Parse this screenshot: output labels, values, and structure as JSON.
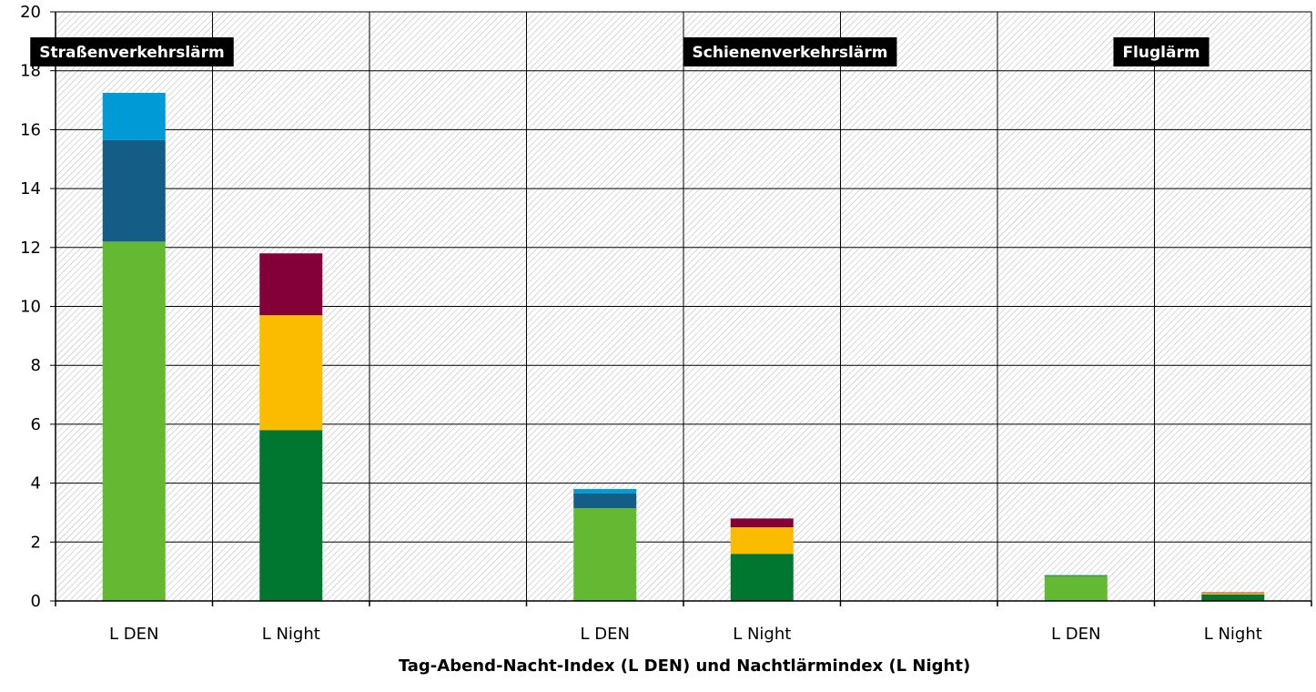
{
  "chart_data": {
    "type": "bar",
    "stacked": true,
    "xlabel": "Tag-Abend-Nacht-Index (L DEN) und Nachtlärmindex (L Night)",
    "ylabel": "",
    "ylim": [
      0,
      20
    ],
    "yticks": [
      0,
      2,
      4,
      6,
      8,
      10,
      12,
      14,
      16,
      18,
      20
    ],
    "grid": true,
    "groups": [
      {
        "label": "Straßenverkehrslärm",
        "bars": [
          {
            "category": "L DEN",
            "segments": [
              {
                "value": 12.2,
                "color": "#63b932"
              },
              {
                "value": 3.45,
                "color": "#135d86"
              },
              {
                "value": 1.6,
                "color": "#009ad6"
              }
            ]
          },
          {
            "category": "L Night",
            "segments": [
              {
                "value": 5.8,
                "color": "#007730"
              },
              {
                "value": 3.9,
                "color": "#fbbc00"
              },
              {
                "value": 2.1,
                "color": "#830039"
              }
            ]
          }
        ]
      },
      {
        "label": "Schienenverkehrslärm",
        "bars": [
          {
            "category": "L DEN",
            "segments": [
              {
                "value": 3.15,
                "color": "#63b932"
              },
              {
                "value": 0.5,
                "color": "#135d86"
              },
              {
                "value": 0.15,
                "color": "#009ad6"
              }
            ]
          },
          {
            "category": "L Night",
            "segments": [
              {
                "value": 1.6,
                "color": "#007730"
              },
              {
                "value": 0.9,
                "color": "#fbbc00"
              },
              {
                "value": 0.3,
                "color": "#830039"
              }
            ]
          }
        ]
      },
      {
        "label": "Fluglärm",
        "bars": [
          {
            "category": "L DEN",
            "segments": [
              {
                "value": 0.85,
                "color": "#63b932"
              },
              {
                "value": 0.02,
                "color": "#135d86"
              },
              {
                "value": 0.01,
                "color": "#009ad6"
              }
            ]
          },
          {
            "category": "L Night",
            "segments": [
              {
                "value": 0.22,
                "color": "#007730"
              },
              {
                "value": 0.05,
                "color": "#fbbc00"
              },
              {
                "value": 0.02,
                "color": "#830039"
              }
            ]
          }
        ]
      }
    ]
  }
}
